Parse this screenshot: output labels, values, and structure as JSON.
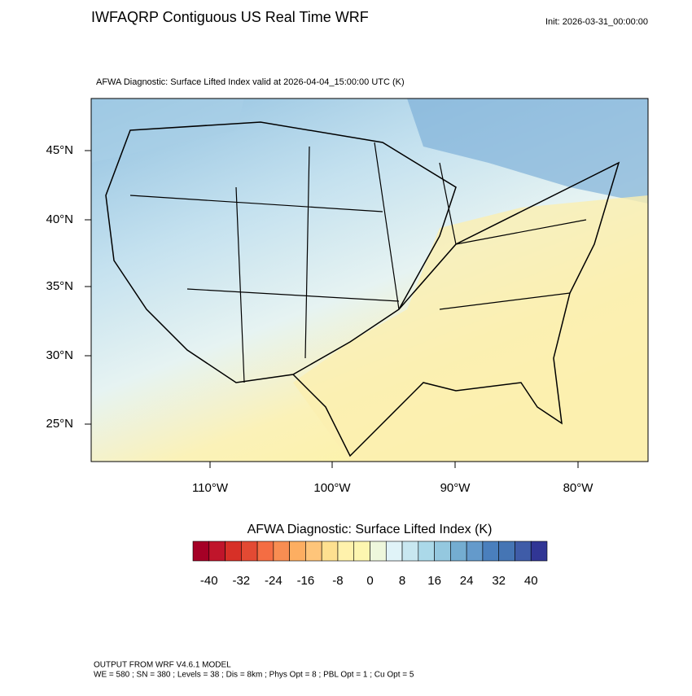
{
  "header": {
    "title": "IWFAQRP Contiguous US Real Time WRF",
    "init": "Init: 2026-03-31_00:00:00",
    "subtitle": "AFWA Diagnostic: Surface Lifted Index valid at 2026-04-04_15:00:00 UTC   (K)"
  },
  "map": {
    "lat_labels": [
      "45°N",
      "40°N",
      "35°N",
      "30°N",
      "25°N"
    ],
    "lon_labels": [
      "110°W",
      "100°W",
      "90°W",
      "80°W"
    ]
  },
  "colorbar": {
    "title": "AFWA Diagnostic: Surface Lifted Index  (K)",
    "ticks": [
      -40,
      -32,
      -24,
      -16,
      -8,
      0,
      8,
      16,
      24,
      32,
      40
    ],
    "colors": [
      "#a50026",
      "#c0152b",
      "#d73027",
      "#e34a33",
      "#f46d43",
      "#f88d52",
      "#fdae61",
      "#fec57a",
      "#fee090",
      "#fff2ac",
      "#fdf6b0",
      "#eef7dc",
      "#e0f3f8",
      "#c8e7f0",
      "#abd9e9",
      "#94c8df",
      "#74add1",
      "#649acb",
      "#4a7fbd",
      "#4575b4",
      "#3f5ca8",
      "#313695"
    ]
  },
  "footer": {
    "line1": "OUTPUT FROM WRF V4.6.1 MODEL",
    "line2": "WE = 580 ; SN = 380 ; Levels = 38 ; Dis = 8km ; Phys Opt = 8 ; PBL Opt = 1 ; Cu Opt = 5"
  }
}
